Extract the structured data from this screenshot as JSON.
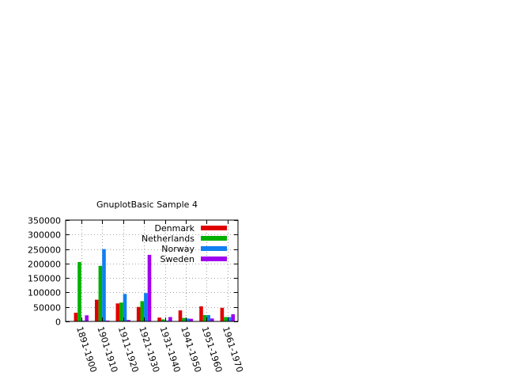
{
  "chart_data": {
    "type": "bar",
    "title": "GnuplotBasic Sample 4",
    "xlabel": "",
    "ylabel": "",
    "categories": [
      "1891-1900",
      "1901-1910",
      "1911-1920",
      "1921-1930",
      "1931-1940",
      "1941-1950",
      "1951-1960",
      "1961-1970"
    ],
    "series": [
      {
        "name": "Denmark",
        "color": "#e00000",
        "values": [
          30000,
          75000,
          62000,
          50000,
          13000,
          38000,
          52000,
          47000
        ]
      },
      {
        "name": "Netherlands",
        "color": "#00b000",
        "values": [
          205000,
          192000,
          65000,
          70000,
          7000,
          12000,
          22000,
          15000
        ]
      },
      {
        "name": "Norway",
        "color": "#1080f0",
        "values": [
          3000,
          250000,
          95000,
          98000,
          3000,
          10000,
          22000,
          15000
        ]
      },
      {
        "name": "Sweden",
        "color": "#a000f0",
        "values": [
          21000,
          3000,
          5000,
          230000,
          15000,
          9000,
          10000,
          25000
        ]
      }
    ],
    "ylim": [
      0,
      350000
    ],
    "yticks": [
      0,
      50000,
      100000,
      150000,
      200000,
      250000,
      300000,
      350000
    ],
    "grid": true,
    "legend_position": "top-right"
  }
}
